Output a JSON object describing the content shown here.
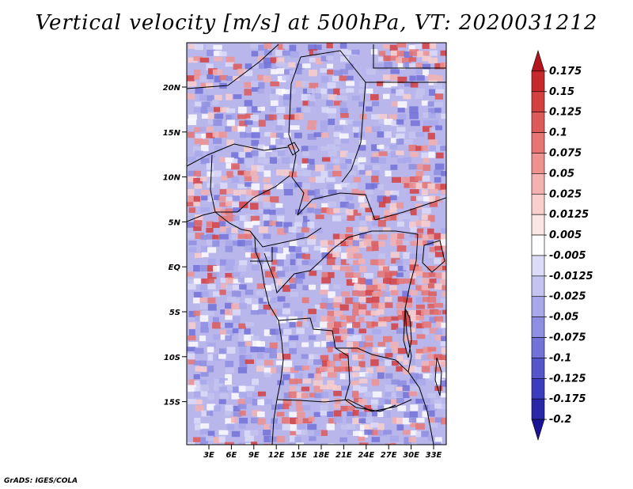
{
  "title": "Vertical velocity [m/s] at 500hPa, VT: 2020031212",
  "credit": "GrADS: IGES/COLA",
  "axes": {
    "lat_labels": [
      "20N",
      "15N",
      "10N",
      "5N",
      "EQ",
      "5S",
      "10S",
      "15S"
    ],
    "lon_labels": [
      "3E",
      "6E",
      "9E",
      "12E",
      "15E",
      "18E",
      "21E",
      "24E",
      "27E",
      "30E",
      "33E"
    ]
  },
  "colorbar": {
    "labels": [
      "0.175",
      "0.15",
      "0.125",
      "0.1",
      "0.075",
      "0.05",
      "0.025",
      "0.0125",
      "0.005",
      "-0.005",
      "-0.0125",
      "-0.025",
      "-0.05",
      "-0.075",
      "-0.1",
      "-0.125",
      "-0.175",
      "-0.2"
    ],
    "colors": [
      "#b2161c",
      "#c62a2c",
      "#d44040",
      "#de5a58",
      "#e67472",
      "#ee9290",
      "#f4b2b0",
      "#f8cfcd",
      "#fbe6e4",
      "#fdfdff",
      "#dcdcf8",
      "#c4c4f0",
      "#a8a8ea",
      "#8e8ee2",
      "#7272d8",
      "#5656cc",
      "#3c3cbe",
      "#2828a8",
      "#1a1494"
    ]
  },
  "colors": {
    "background": "#ffffff",
    "map_base": "#b9b6ec",
    "border": "#000000"
  }
}
